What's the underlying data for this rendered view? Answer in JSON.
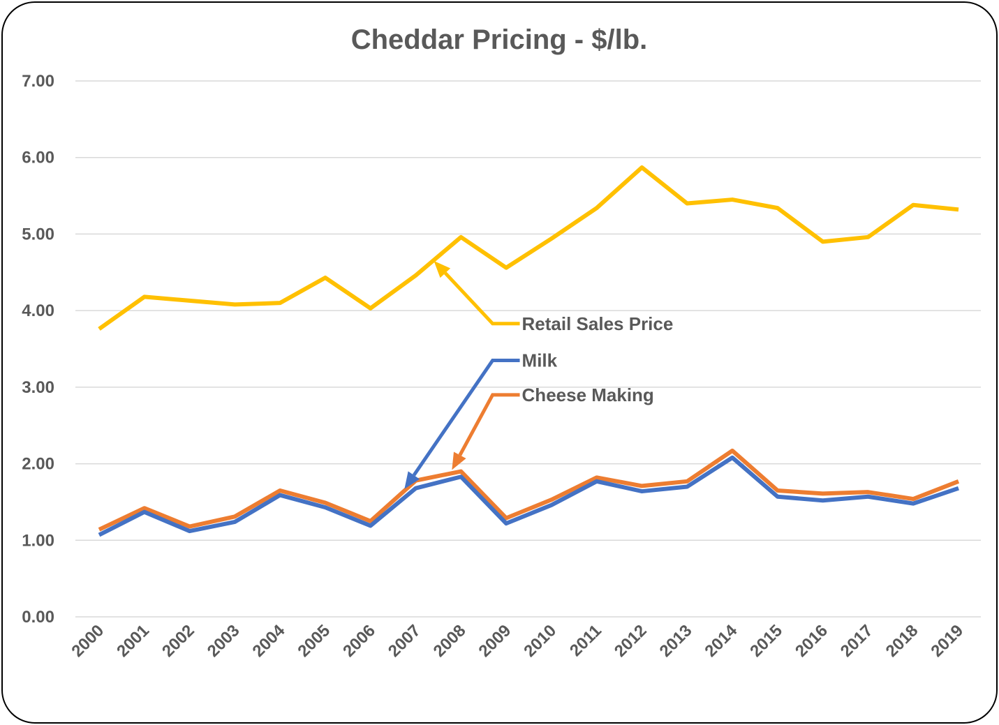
{
  "chart_data": {
    "type": "line",
    "title": "Cheddar Pricing - $/lb.",
    "xlabel": "",
    "ylabel": "",
    "ylim": [
      0,
      7
    ],
    "yticks": [
      "0.00",
      "1.00",
      "2.00",
      "3.00",
      "4.00",
      "5.00",
      "6.00",
      "7.00"
    ],
    "grid": true,
    "categories": [
      "2000",
      "2001",
      "2002",
      "2003",
      "2004",
      "2005",
      "2006",
      "2007",
      "2008",
      "2009",
      "2010",
      "2011",
      "2012",
      "2013",
      "2014",
      "2015",
      "2016",
      "2017",
      "2018",
      "2019"
    ],
    "series": [
      {
        "name": "Retail Sales Price",
        "color": "#FFC000",
        "values": [
          3.76,
          4.18,
          4.13,
          4.08,
          4.1,
          4.43,
          4.03,
          4.46,
          4.96,
          4.56,
          4.94,
          5.34,
          5.87,
          5.4,
          5.45,
          5.34,
          4.9,
          4.96,
          5.38,
          5.32
        ]
      },
      {
        "name": "Cheese Making",
        "color": "#ED7D31",
        "values": [
          1.14,
          1.42,
          1.18,
          1.31,
          1.65,
          1.49,
          1.25,
          1.78,
          1.9,
          1.29,
          1.53,
          1.82,
          1.71,
          1.77,
          2.17,
          1.65,
          1.61,
          1.63,
          1.54,
          1.77
        ]
      },
      {
        "name": "Milk",
        "color": "#4472C4",
        "values": [
          1.07,
          1.37,
          1.12,
          1.24,
          1.59,
          1.43,
          1.19,
          1.68,
          1.83,
          1.22,
          1.46,
          1.77,
          1.64,
          1.7,
          2.08,
          1.57,
          1.52,
          1.57,
          1.48,
          1.68
        ]
      }
    ],
    "legend": "inline callouts with arrows"
  }
}
